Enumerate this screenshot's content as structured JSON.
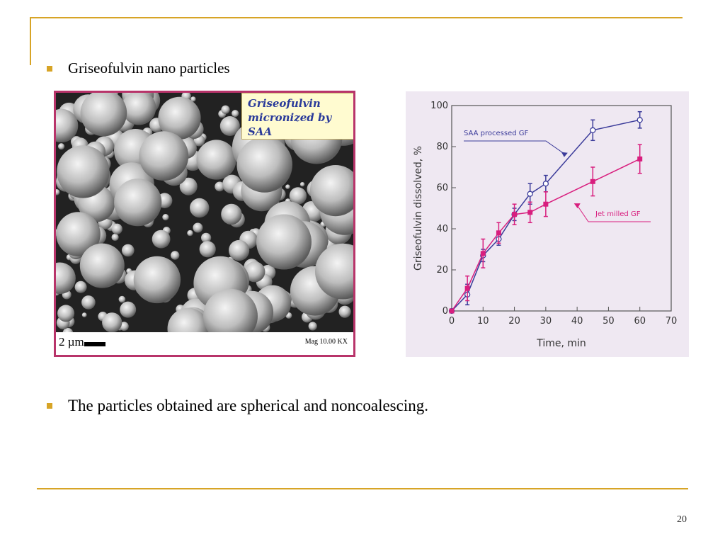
{
  "slide": {
    "bullet_1": "Griseofulvin nano particles",
    "bullet_2": "The particles obtained are  spherical and noncoalescing.",
    "page_number": "20",
    "accent_color": "#d7a426"
  },
  "sem_image": {
    "caption_line_1": "Griseofulvin",
    "caption_line_2": "micronized by SAA",
    "scale_label": "2 µm",
    "magnification": "Mag 10.00 KX",
    "border_color": "#b8346a"
  },
  "chart_data": {
    "type": "line",
    "xlabel": "Time, min",
    "ylabel": "Griseofulvin dissolved, %",
    "xlim": [
      0,
      70
    ],
    "ylim": [
      0,
      100
    ],
    "xticks": [
      0,
      10,
      20,
      30,
      40,
      50,
      60,
      70
    ],
    "yticks": [
      0,
      20,
      40,
      60,
      80,
      100
    ],
    "grid": false,
    "legend": "annotations",
    "series": [
      {
        "name": "SAA processed GF",
        "color": "#3b3b9a",
        "marker": "open-circle",
        "x": [
          0,
          5,
          10,
          15,
          20,
          25,
          30,
          45,
          60
        ],
        "y": [
          0,
          8,
          27,
          35,
          47,
          57,
          62,
          88,
          93
        ],
        "err": [
          0,
          5,
          3,
          3,
          3,
          5,
          4,
          5,
          4
        ]
      },
      {
        "name": "Jet milled GF",
        "color": "#d81e7e",
        "marker": "filled-square",
        "x": [
          0,
          5,
          10,
          15,
          20,
          25,
          30,
          45,
          60
        ],
        "y": [
          0,
          11,
          28,
          38,
          47,
          48,
          52,
          63,
          74
        ],
        "err": [
          0,
          6,
          7,
          5,
          5,
          5,
          6,
          7,
          7
        ]
      }
    ]
  }
}
